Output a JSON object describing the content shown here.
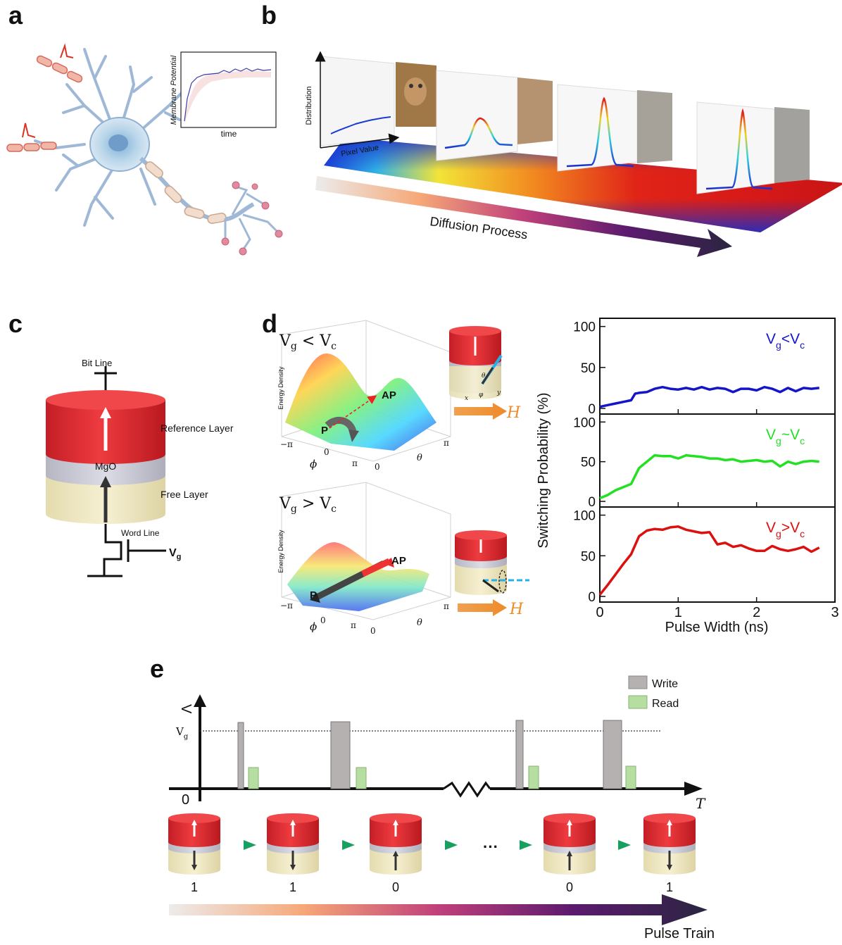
{
  "panels": {
    "a": "a",
    "b": "b",
    "c": "c",
    "d": "d",
    "e": "e"
  },
  "panel_a": {
    "inset_ylabel": "Membrane Potential",
    "inset_xlabel": "time"
  },
  "panel_b": {
    "ylabel": "Distribution",
    "xlabel": "Pixel Value",
    "arrow_label": "Diffusion Process"
  },
  "panel_c": {
    "bit_line": "Bit Line",
    "reference_layer": "Reference  Layer",
    "mgo": "MgO",
    "free_layer": "Free Layer",
    "word_line": "Word Line",
    "vg": "V",
    "vg_sub": "g"
  },
  "panel_d": {
    "top_title": {
      "main": "V",
      "sub1": "g",
      "op": " < V",
      "sub2": "c"
    },
    "bottom_title": {
      "main": "V",
      "sub1": "g",
      "op": " > V",
      "sub2": "c"
    },
    "energy_label": "Energy Density",
    "ap": "AP",
    "p": "P",
    "phi": "ϕ",
    "theta": "θ",
    "ticks_phi": [
      "−π",
      "0",
      "π"
    ],
    "ticks_theta": [
      "0",
      "π"
    ],
    "field": "H",
    "axes_small": [
      "x",
      "y",
      "θ",
      "φ"
    ]
  },
  "switching_plot": {
    "ylabel": "Switching Probability (%)",
    "xlabel": "Pulse Width (ns)",
    "xticks": [
      "0",
      "1",
      "2",
      "3"
    ],
    "yticks_top": [
      "0",
      "50",
      "100"
    ],
    "legend": [
      {
        "main": "V",
        "sub1": "g",
        "op": "<V",
        "sub2": "c",
        "color": "#1515c8"
      },
      {
        "main": "V",
        "sub1": "g",
        "op": "~V",
        "sub2": "c",
        "color": "#22e022"
      },
      {
        "main": "V",
        "sub1": "g",
        "op": ">V",
        "sub2": "c",
        "color": "#dd1010"
      }
    ]
  },
  "chart_data": [
    {
      "type": "line",
      "title": "",
      "xlabel": "Pulse Width (ns)",
      "ylabel": "Switching Probability (%)",
      "xlim": [
        0,
        3
      ],
      "ylim": [
        0,
        110
      ],
      "series": [
        {
          "name": "Vg<Vc",
          "color": "#1515c8",
          "x": [
            0,
            0.1,
            0.2,
            0.3,
            0.4,
            0.45,
            0.5,
            0.6,
            0.7,
            0.8,
            0.9,
            1.0,
            1.1,
            1.2,
            1.3,
            1.4,
            1.5,
            1.6,
            1.7,
            1.8,
            1.9,
            2.0,
            2.1,
            2.2,
            2.3,
            2.4,
            2.5,
            2.6,
            2.7,
            2.8
          ],
          "y": [
            2,
            4,
            6,
            8,
            10,
            18,
            19,
            20,
            24,
            26,
            24,
            23,
            25,
            23,
            26,
            23,
            25,
            24,
            20,
            24,
            24,
            22,
            26,
            24,
            20,
            25,
            21,
            25,
            24,
            25
          ]
        },
        {
          "name": "Vg~Vc",
          "color": "#22e022",
          "x": [
            0,
            0.1,
            0.2,
            0.3,
            0.4,
            0.5,
            0.6,
            0.7,
            0.8,
            0.9,
            1.0,
            1.1,
            1.2,
            1.3,
            1.4,
            1.5,
            1.6,
            1.7,
            1.8,
            1.9,
            2.0,
            2.1,
            2.2,
            2.3,
            2.4,
            2.5,
            2.6,
            2.7,
            2.8
          ],
          "y": [
            4,
            8,
            14,
            18,
            22,
            42,
            50,
            58,
            57,
            57,
            54,
            58,
            57,
            56,
            54,
            54,
            52,
            53,
            50,
            51,
            52,
            50,
            51,
            44,
            50,
            47,
            50,
            51,
            50
          ]
        },
        {
          "name": "Vg>Vc",
          "color": "#dd1010",
          "x": [
            0,
            0.1,
            0.2,
            0.3,
            0.4,
            0.5,
            0.6,
            0.7,
            0.8,
            0.9,
            1.0,
            1.1,
            1.2,
            1.3,
            1.4,
            1.5,
            1.6,
            1.7,
            1.8,
            1.9,
            2.0,
            2.1,
            2.2,
            2.3,
            2.4,
            2.5,
            2.6,
            2.7,
            2.8
          ],
          "y": [
            2,
            14,
            27,
            40,
            52,
            74,
            81,
            83,
            82,
            85,
            86,
            82,
            80,
            78,
            79,
            64,
            66,
            61,
            63,
            59,
            56,
            56,
            62,
            58,
            56,
            58,
            61,
            55,
            60
          ]
        }
      ]
    }
  ],
  "panel_e": {
    "v_axis": "V",
    "vg": "V",
    "vg_sub": "g",
    "origin": "0",
    "t_axis": "T",
    "legend": [
      {
        "label": "Write",
        "color": "#b4b1b0"
      },
      {
        "label": "Read",
        "color": "#b5dea0"
      }
    ],
    "bits": [
      "1",
      "1",
      "0",
      "0",
      "1"
    ],
    "ellipsis": "···",
    "arrow_label": "Pulse Train"
  }
}
